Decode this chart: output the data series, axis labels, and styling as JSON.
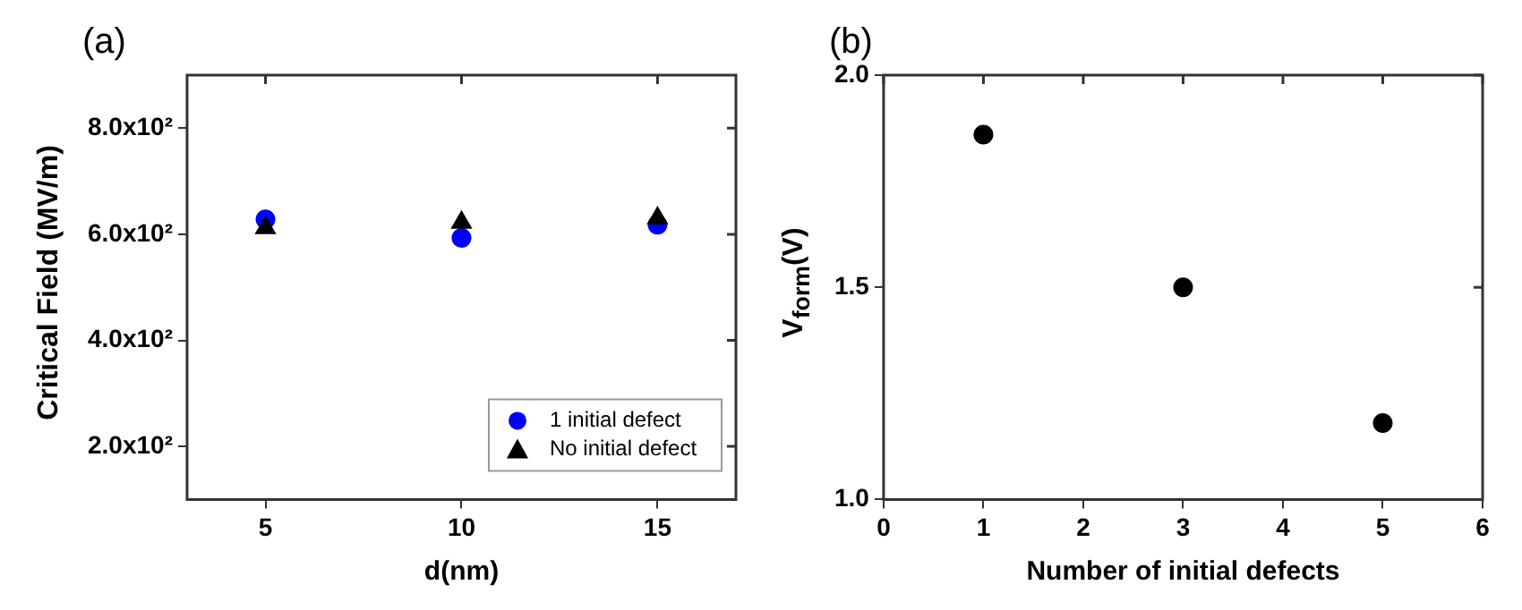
{
  "chart_data": [
    {
      "type": "scatter",
      "title": "(a)",
      "xlabel": "d(nm)",
      "ylabel": "Critical Field (MV/m)",
      "x": [
        5,
        10,
        15
      ],
      "series": [
        {
          "name": "1 initial defect",
          "color": "#0000ff",
          "marker": "circle",
          "values": [
            628,
            593,
            618
          ]
        },
        {
          "name": "No initial defect",
          "color": "#000000",
          "marker": "triangle",
          "values": [
            612,
            622,
            630
          ]
        }
      ],
      "xlim": [
        3,
        17
      ],
      "xticks": [
        5,
        10,
        15
      ],
      "ylim": [
        100,
        900
      ],
      "yticks": [
        {
          "value": 200,
          "label": "2.0x10²"
        },
        {
          "value": 400,
          "label": "4.0x10²"
        },
        {
          "value": 600,
          "label": "6.0x10²"
        },
        {
          "value": 800,
          "label": "8.0x10²"
        }
      ],
      "grid": false,
      "legend": "bottom right"
    },
    {
      "type": "scatter",
      "title": "(b)",
      "xlabel": "Number of initial defects",
      "ylabel": "V$_{form}$(V)",
      "x": [
        1,
        3,
        5
      ],
      "series": [
        {
          "color": "#000000",
          "values": [
            1.86,
            1.5,
            1.18
          ]
        }
      ],
      "marker": "circle",
      "xlim": [
        0,
        6
      ],
      "xticks": [
        0,
        1,
        2,
        3,
        4,
        5,
        6
      ],
      "ylim": [
        1,
        2
      ],
      "yticks": [
        {
          "value": 1,
          "label": "1.0"
        },
        {
          "value": 1.5,
          "label": "1.5"
        },
        {
          "value": 2,
          "label": "2.0"
        }
      ],
      "grid": false,
      "legend": false
    }
  ]
}
